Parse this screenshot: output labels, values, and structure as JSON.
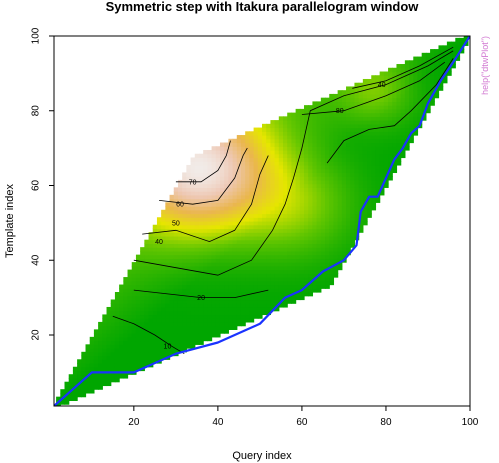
{
  "chart_data": {
    "type": "heatmap",
    "title": "Symmetric step with Itakura parallelogram window",
    "xlabel": "Query index",
    "ylabel": "Template index",
    "xlim": [
      1,
      100
    ],
    "ylim": [
      1,
      100
    ],
    "x_ticks": [
      20,
      40,
      60,
      80,
      100
    ],
    "y_ticks": [
      20,
      40,
      60,
      80,
      100
    ],
    "grid": false,
    "side_note": "help(\"dtwPlot\")",
    "colors": {
      "low": "#00a600",
      "mid_low": "#63c600",
      "mid": "#e6e600",
      "mid_high": "#eab64e",
      "high": "#f2f2f2",
      "path": "#1a33ff",
      "contour": "#000000",
      "side_note": "#d27ad2"
    },
    "window": {
      "name": "Itakura parallelogram",
      "upper_boundary": [
        [
          1,
          1
        ],
        [
          34,
          67
        ],
        [
          100,
          100
        ]
      ],
      "lower_boundary": [
        [
          1,
          1
        ],
        [
          67,
          34
        ],
        [
          100,
          100
        ]
      ]
    },
    "warping_path": [
      [
        1,
        1
      ],
      [
        10,
        10
      ],
      [
        20,
        10
      ],
      [
        30,
        15
      ],
      [
        40,
        18
      ],
      [
        50,
        23
      ],
      [
        56,
        30
      ],
      [
        60,
        32
      ],
      [
        65,
        37
      ],
      [
        70,
        40
      ],
      [
        73,
        44
      ],
      [
        74,
        53
      ],
      [
        76,
        57
      ],
      [
        78,
        57
      ],
      [
        80,
        62
      ],
      [
        82,
        67
      ],
      [
        84,
        70
      ],
      [
        86,
        74
      ],
      [
        88,
        76
      ],
      [
        90,
        82
      ],
      [
        93,
        88
      ],
      [
        96,
        93
      ],
      [
        100,
        100
      ]
    ],
    "contours": [
      {
        "level": 10,
        "label": "10",
        "label_at": [
          28,
          17
        ],
        "points": [
          [
            15,
            25
          ],
          [
            20,
            23
          ],
          [
            25,
            20
          ],
          [
            29,
            17
          ],
          [
            32,
            15
          ]
        ]
      },
      {
        "level": 20,
        "label": "20",
        "label_at": [
          36,
          30
        ],
        "points": [
          [
            20,
            32
          ],
          [
            28,
            31
          ],
          [
            36,
            30
          ],
          [
            44,
            30
          ],
          [
            52,
            32
          ]
        ]
      },
      {
        "level": 40,
        "label": "40",
        "label_at": [
          26,
          45
        ],
        "points": [
          [
            20,
            40
          ],
          [
            30,
            38
          ],
          [
            40,
            36
          ],
          [
            48,
            40
          ],
          [
            53,
            48
          ],
          [
            56,
            55
          ],
          [
            58,
            62
          ],
          [
            60,
            70
          ],
          [
            62,
            80
          ],
          [
            70,
            84
          ],
          [
            80,
            87
          ],
          [
            90,
            92
          ],
          [
            96,
            96
          ]
        ]
      },
      {
        "level": 50,
        "label": "50",
        "label_at": [
          30,
          50
        ],
        "points": [
          [
            22,
            47
          ],
          [
            30,
            48
          ],
          [
            38,
            45
          ],
          [
            44,
            48
          ],
          [
            48,
            55
          ],
          [
            50,
            63
          ],
          [
            52,
            68
          ]
        ]
      },
      {
        "level": 60,
        "label": "60",
        "label_at": [
          31,
          55
        ],
        "points": [
          [
            26,
            56
          ],
          [
            34,
            55
          ],
          [
            40,
            56
          ],
          [
            44,
            62
          ],
          [
            46,
            68
          ],
          [
            47,
            70
          ]
        ]
      },
      {
        "level": 70,
        "label": "70",
        "label_at": [
          34,
          61
        ],
        "points": [
          [
            30,
            61
          ],
          [
            36,
            61
          ],
          [
            40,
            64
          ],
          [
            42,
            68
          ],
          [
            43,
            72
          ]
        ]
      },
      {
        "level": 80,
        "label": "80",
        "label_at": [
          69,
          80
        ],
        "points": [
          [
            60,
            79
          ],
          [
            70,
            80
          ],
          [
            80,
            84
          ],
          [
            88,
            88
          ],
          [
            94,
            93
          ]
        ]
      },
      {
        "level": 40,
        "label": "40",
        "label_at": [
          79,
          87
        ],
        "points": [
          [
            72,
            86
          ],
          [
            80,
            88
          ],
          [
            88,
            92
          ],
          [
            96,
            97
          ]
        ]
      },
      {
        "level": 20,
        "label": "",
        "label_at": null,
        "points": [
          [
            66,
            66
          ],
          [
            70,
            72
          ],
          [
            76,
            75
          ],
          [
            82,
            76
          ],
          [
            86,
            80
          ],
          [
            92,
            87
          ],
          [
            96,
            94
          ]
        ]
      }
    ]
  }
}
